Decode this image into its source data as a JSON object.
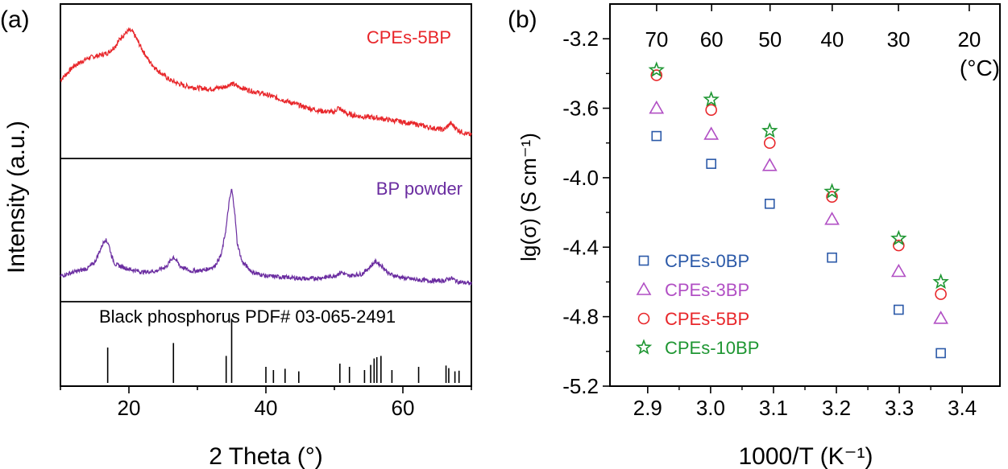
{
  "colors": {
    "axis": "#000000",
    "cpes_5bp": "#e8262a",
    "bp_powder": "#6a2ca0",
    "pdf": "#000000",
    "cpes_0bp": "#2b59a8",
    "cpes_3bp": "#b14fc4",
    "cpes_10bp": "#1e9632"
  },
  "chart_data": [
    {
      "panel_label": "(a)",
      "type": "line",
      "title": "",
      "xlabel": "2 Theta (°)",
      "ylabel": "Intensity (a.u.)",
      "xlim": [
        10,
        70
      ],
      "xticks": [
        20,
        40,
        60
      ],
      "grid": false,
      "series": [
        {
          "name": "CPEs-5BP",
          "color": "#e8262a",
          "x": [
            10,
            12,
            14,
            16,
            17,
            18,
            19,
            20,
            20.5,
            21,
            22,
            23,
            24,
            26,
            28,
            30,
            32,
            34,
            35,
            36,
            38,
            40,
            42,
            44,
            46,
            48,
            50,
            50.5,
            52,
            54,
            56,
            58,
            60,
            62,
            64,
            66,
            67,
            68,
            69,
            70
          ],
          "values": [
            0.55,
            0.68,
            0.75,
            0.78,
            0.8,
            0.86,
            0.95,
            1.0,
            0.99,
            0.94,
            0.82,
            0.72,
            0.65,
            0.55,
            0.5,
            0.48,
            0.47,
            0.49,
            0.52,
            0.49,
            0.45,
            0.42,
            0.38,
            0.34,
            0.3,
            0.27,
            0.26,
            0.3,
            0.24,
            0.22,
            0.21,
            0.19,
            0.17,
            0.15,
            0.12,
            0.1,
            0.16,
            0.1,
            0.07,
            0.05
          ]
        },
        {
          "name": "BP powder",
          "color": "#6a2ca0",
          "x": [
            10,
            12,
            14,
            15,
            16,
            16.5,
            17,
            17.5,
            18,
            20,
            22,
            24,
            25.5,
            26.5,
            27.5,
            29,
            31,
            32.5,
            33.5,
            34.2,
            34.6,
            35.0,
            35.4,
            35.8,
            36.5,
            38,
            40,
            42,
            44,
            46,
            48,
            50,
            51,
            52,
            54,
            55,
            56,
            57,
            58,
            60,
            62,
            64,
            66,
            67,
            68,
            70
          ],
          "values": [
            0.1,
            0.14,
            0.18,
            0.24,
            0.4,
            0.48,
            0.44,
            0.3,
            0.22,
            0.17,
            0.14,
            0.15,
            0.2,
            0.3,
            0.2,
            0.15,
            0.16,
            0.2,
            0.32,
            0.6,
            0.85,
            1.0,
            0.8,
            0.45,
            0.25,
            0.14,
            0.1,
            0.09,
            0.08,
            0.07,
            0.08,
            0.1,
            0.14,
            0.1,
            0.12,
            0.18,
            0.25,
            0.2,
            0.12,
            0.08,
            0.06,
            0.05,
            0.05,
            0.08,
            0.04,
            0.02
          ]
        }
      ],
      "reference": {
        "name": "Black phosphorus PDF# 03-065-2491",
        "color": "#000000",
        "positions": [
          16.9,
          26.5,
          34.2,
          35.0,
          40.0,
          41.1,
          42.8,
          44.8,
          50.8,
          52.2,
          54.4,
          55.3,
          55.8,
          56.2,
          56.8,
          58.4,
          62.3,
          66.3,
          66.7,
          67.6,
          68.2
        ],
        "intensities": [
          0.55,
          0.62,
          0.42,
          1.0,
          0.25,
          0.2,
          0.22,
          0.18,
          0.3,
          0.25,
          0.2,
          0.28,
          0.38,
          0.4,
          0.42,
          0.2,
          0.25,
          0.27,
          0.23,
          0.18,
          0.19
        ]
      }
    },
    {
      "panel_label": "(b)",
      "type": "scatter",
      "title": "",
      "xlabel": "1000/T (K⁻¹)",
      "ylabel": "lg(σ) (S cm⁻¹)",
      "xlim": [
        2.84,
        3.46
      ],
      "ylim": [
        -5.2,
        -3.0
      ],
      "xticks": [
        2.9,
        3.0,
        3.1,
        3.2,
        3.3,
        3.4
      ],
      "yticks": [
        -5.2,
        -4.8,
        -4.4,
        -4.0,
        -3.6,
        -3.2
      ],
      "grid": false,
      "top_axis": {
        "label": "(°C)",
        "ticks": [
          {
            "label": "70",
            "celsius": 70
          },
          {
            "label": "60",
            "celsius": 60
          },
          {
            "label": "50",
            "celsius": 50
          },
          {
            "label": "40",
            "celsius": 40
          },
          {
            "label": "30",
            "celsius": 30
          },
          {
            "label": "20",
            "celsius": 20
          }
        ]
      },
      "legend_position": "bottom-left",
      "x": [
        2.914,
        3.001,
        3.094,
        3.193,
        3.299,
        3.366
      ],
      "series": [
        {
          "name": "CPEs-0BP",
          "marker": "square",
          "color": "#2b59a8",
          "values": [
            -3.76,
            -3.92,
            -4.15,
            -4.46,
            -4.76,
            -5.01
          ]
        },
        {
          "name": "CPEs-3BP",
          "marker": "triangle",
          "color": "#b14fc4",
          "values": [
            -3.6,
            -3.75,
            -3.93,
            -4.24,
            -4.54,
            -4.81
          ]
        },
        {
          "name": "CPEs-5BP",
          "marker": "circle",
          "color": "#e8262a",
          "values": [
            -3.41,
            -3.61,
            -3.8,
            -4.11,
            -4.39,
            -4.67
          ]
        },
        {
          "name": "CPEs-10BP",
          "marker": "star",
          "color": "#1e9632",
          "values": [
            -3.38,
            -3.55,
            -3.73,
            -4.08,
            -4.35,
            -4.6
          ]
        }
      ]
    }
  ]
}
